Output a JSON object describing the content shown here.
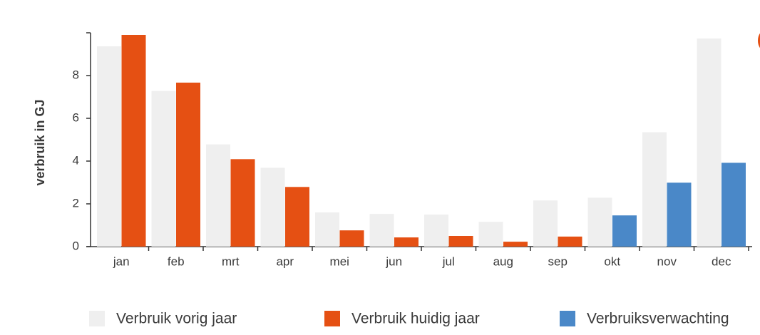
{
  "chart_data": {
    "type": "bar",
    "y_label": "verbruik in GJ",
    "categories": [
      "jan",
      "feb",
      "mrt",
      "apr",
      "mei",
      "jun",
      "jul",
      "aug",
      "sep",
      "okt",
      "nov",
      "dec"
    ],
    "series": [
      {
        "name": "Verbruik vorig jaar",
        "color": "#efefef",
        "values": [
          9.37,
          7.28,
          4.78,
          3.69,
          1.6,
          1.53,
          1.5,
          1.16,
          2.16,
          2.29,
          5.35,
          9.73
        ]
      },
      {
        "name": "Verbruik huidig jaar",
        "color": "#e55013",
        "values": [
          9.9,
          7.67,
          4.09,
          2.79,
          0.76,
          0.43,
          0.5,
          0.23,
          0.47,
          null,
          null,
          null
        ]
      },
      {
        "name": "Verbruiksverwachting",
        "color": "#4a88c8",
        "values": [
          null,
          null,
          null,
          null,
          null,
          null,
          null,
          null,
          null,
          1.46,
          2.99,
          3.92
        ]
      }
    ],
    "ylim": [
      0,
      10
    ],
    "yticks": [
      0,
      2,
      4,
      6,
      8
    ]
  }
}
